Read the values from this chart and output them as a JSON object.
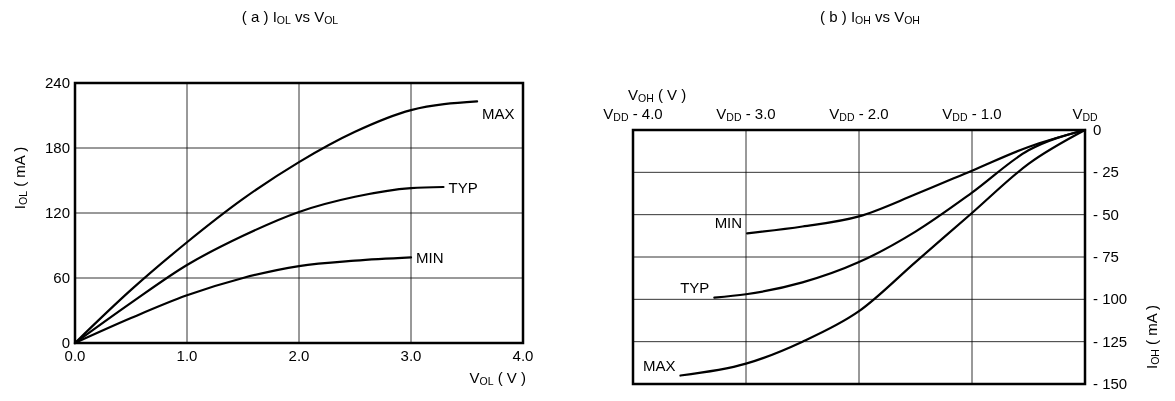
{
  "chart_data": [
    {
      "type": "line",
      "title": "( a ) I$_{OL}$ vs V$_{OL}$",
      "xlabel": "V$_{OL}$ ( V )",
      "ylabel": "I$_{OL}$ ( mA )",
      "xlim": [
        0,
        4
      ],
      "xticks": [
        {
          "value": 0,
          "label": "0.0"
        },
        {
          "value": 1,
          "label": "1.0"
        },
        {
          "value": 2,
          "label": "2.0"
        },
        {
          "value": 3,
          "label": "3.0"
        },
        {
          "value": 4,
          "label": "4.0"
        }
      ],
      "ylim": [
        0,
        240
      ],
      "yticks": [
        0,
        60,
        120,
        180,
        240
      ],
      "grid": true,
      "legend": false,
      "series": [
        {
          "name": "MAX",
          "color": "#000000",
          "x": [
            0,
            0.5,
            1,
            1.5,
            2,
            2.5,
            3,
            3.59
          ],
          "values": [
            0,
            49,
            93,
            133,
            167,
            195,
            215,
            223
          ]
        },
        {
          "name": "TYP",
          "color": "#000000",
          "x": [
            0,
            0.5,
            1,
            1.5,
            2,
            2.5,
            3,
            3.29
          ],
          "values": [
            0,
            37,
            72,
            99,
            121,
            135,
            143,
            144
          ]
        },
        {
          "name": "MIN",
          "color": "#000000",
          "x": [
            0,
            0.5,
            1,
            1.5,
            2,
            2.5,
            3
          ],
          "values": [
            0,
            23,
            44,
            60,
            71,
            76,
            79
          ]
        }
      ]
    },
    {
      "type": "line",
      "title": "( b ) I$_{OH}$ vs V$_{OH}$",
      "xlabel": "V$_{OH}$ ( V )",
      "ylabel": "I$_{OH}$ ( mA )",
      "xlim": [
        -4,
        0
      ],
      "xticks": [
        {
          "value": -4,
          "label": "V$_{DD}$ - 4.0"
        },
        {
          "value": -3,
          "label": "V$_{DD}$ - 3.0"
        },
        {
          "value": -2,
          "label": "V$_{DD}$ - 2.0"
        },
        {
          "value": -1,
          "label": "V$_{DD}$ - 1.0"
        },
        {
          "value": 0,
          "label": "V$_{DD}$"
        }
      ],
      "ylim": [
        -150,
        0
      ],
      "yticks": [
        0,
        {
          "value": -25,
          "label": "- 25"
        },
        {
          "value": -50,
          "label": "- 50"
        },
        {
          "value": -75,
          "label": "- 75"
        },
        {
          "value": -100,
          "label": "- 100"
        },
        {
          "value": -125,
          "label": "- 125"
        },
        {
          "value": -150,
          "label": "- 150"
        }
      ],
      "grid": true,
      "legend": false,
      "series": [
        {
          "name": "MIN",
          "color": "#000000",
          "x": [
            -2.99,
            -2.5,
            -2,
            -1.5,
            -1,
            -0.5,
            0
          ],
          "values": [
            -61,
            -57,
            -51,
            -38,
            -24,
            -10,
            0
          ]
        },
        {
          "name": "TYP",
          "color": "#000000",
          "x": [
            -3.28,
            -3,
            -2.5,
            -2,
            -1.5,
            -1,
            -0.5,
            0
          ],
          "values": [
            -99,
            -97,
            -90,
            -78,
            -60,
            -37,
            -12,
            0
          ]
        },
        {
          "name": "MAX",
          "color": "#000000",
          "x": [
            -3.58,
            -3,
            -2.5,
            -2,
            -1.5,
            -1,
            -0.5,
            0
          ],
          "values": [
            -145,
            -138,
            -125,
            -107,
            -78,
            -49,
            -20,
            0
          ]
        }
      ]
    }
  ]
}
